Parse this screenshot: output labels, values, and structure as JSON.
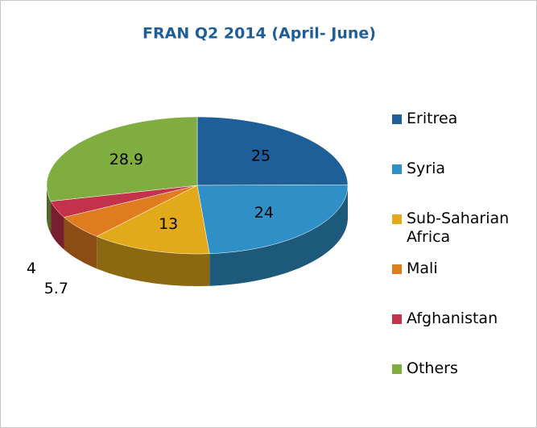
{
  "chart_data": {
    "type": "pie3d",
    "title": "FRAN Q2 2014 (April- June)",
    "categories": [
      "Eritrea",
      "Syria",
      "Sub-Saharian Africa",
      "Mali",
      "Afghanistan",
      "Others"
    ],
    "values": [
      25,
      24,
      13,
      5.7,
      4,
      28.9
    ],
    "colors": [
      "#1f5f99",
      "#2e90c6",
      "#e2aa1b",
      "#e07c20",
      "#c3314b",
      "#7fad3f"
    ],
    "legend": "right"
  }
}
